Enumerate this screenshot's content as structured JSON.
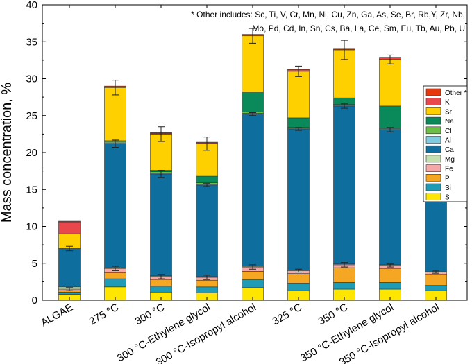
{
  "chart_data": {
    "type": "bar",
    "stacked": true,
    "ylabel": "Mass concentration, %",
    "ylim": [
      0,
      40
    ],
    "yticks": [
      0,
      5,
      10,
      15,
      20,
      25,
      30,
      35,
      40
    ],
    "categories": [
      "ALGAE",
      "275 °C",
      "300 °C",
      "300 °C-Ethylene glycol",
      "300 °C-Isopropyl alcohol",
      "325 °C",
      "350 °C",
      "350 °C-Ethylene glycol",
      "350 °C-Isopropyl alcohol"
    ],
    "annotation": [
      "* Other includes: Sc, Ti, V, Cr, Mn, Ni, Cu, Zn, Ga, As, Se, Br, Rb,Y, Zr, Nb,",
      "Mo, Pd, Cd, In, Sn, Cs, Ba, La, Ce, Sm, Eu, Tb, Au, Pb, U"
    ],
    "legend_position": "right",
    "series": [
      {
        "name": "S",
        "color": "#FFE600",
        "values": [
          0.8,
          1.8,
          1.1,
          1.0,
          1.7,
          1.3,
          1.5,
          1.5,
          1.3
        ]
      },
      {
        "name": "Si",
        "color": "#1F9BB5",
        "values": [
          0.3,
          1.1,
          0.8,
          0.8,
          1.1,
          1.0,
          0.9,
          0.9,
          0.7
        ]
      },
      {
        "name": "P",
        "color": "#F5A623",
        "values": [
          0.2,
          0.8,
          0.9,
          0.9,
          1.1,
          1.3,
          2.0,
          1.9,
          1.5
        ]
      },
      {
        "name": "Fe",
        "color": "#F4A9A8",
        "values": [
          0.2,
          0.6,
          0.4,
          0.4,
          0.6,
          0.4,
          0.4,
          0.4,
          0.3
        ]
      },
      {
        "name": "Mg",
        "color": "#C5DFB0",
        "values": [
          0.3,
          0.1,
          0.1,
          0.1,
          0.1,
          0.1,
          0.1,
          0.1,
          0.1
        ]
      },
      {
        "name": "Ca",
        "color": "#0E6E9E",
        "values": [
          5.2,
          16.8,
          13.8,
          12.4,
          20.6,
          19.1,
          21.4,
          18.3,
          13.3
        ]
      },
      {
        "name": "Al",
        "color": "#7FCBDF",
        "values": [
          0.0,
          0.1,
          0.1,
          0.1,
          0.1,
          0.1,
          0.1,
          0.1,
          0.1
        ]
      },
      {
        "name": "Cl",
        "color": "#6DBE45",
        "values": [
          0.0,
          0.2,
          0.2,
          0.2,
          0.2,
          0.1,
          0.1,
          0.1,
          0.1
        ]
      },
      {
        "name": "Na",
        "color": "#0A8A5A",
        "values": [
          0.0,
          0.1,
          0.2,
          0.9,
          2.7,
          1.3,
          0.9,
          3.0,
          1.3
        ]
      },
      {
        "name": "Sr",
        "color": "#FFD000",
        "values": [
          2.0,
          7.2,
          4.9,
          4.4,
          7.6,
          6.3,
          6.5,
          6.3,
          5.1
        ]
      },
      {
        "name": "K",
        "color": "#E8474B",
        "values": [
          1.6,
          0.1,
          0.1,
          0.1,
          0.1,
          0.2,
          0.1,
          0.2,
          0.1
        ]
      },
      {
        "name": "Other *",
        "color": "#E8380D",
        "values": [
          0.1,
          0.1,
          0.1,
          0.1,
          0.1,
          0.1,
          0.1,
          0.1,
          0.1
        ]
      }
    ],
    "error_bars": {
      "Fe": [
        0.2,
        0.3,
        0.3,
        0.3,
        0.3,
        0.2,
        0.3,
        0.2,
        0.15
      ],
      "Ca": [
        0.3,
        0.5,
        0.5,
        0.2,
        0.2,
        0.2,
        0.3,
        0.3,
        0.2
      ],
      "Sr": [
        0.0,
        1.0,
        1.0,
        0.9,
        1.0,
        0.7,
        1.3,
        0.6,
        0.6
      ]
    }
  }
}
